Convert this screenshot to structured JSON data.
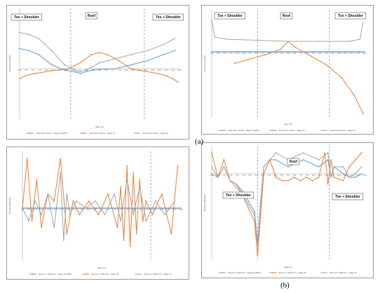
{
  "captions": {
    "a": "(a)",
    "b": "(b)"
  },
  "colors": {
    "blue": "#5b9bd5",
    "orange": "#ed7d31",
    "gray": "#a5a5a5",
    "divider": "#5b9bd5"
  },
  "chart_data": [
    {
      "id": "tl",
      "type": "line",
      "region_labels": [
        "Toe + Shoulder",
        "Roof",
        "Toe + Shoulder"
      ],
      "xlabel": "Span (m)",
      "ylabel": "Axial Force (kN/m)",
      "legend": [
        "Axial Force (kN/m) - Stage 25 (EPS)",
        "Axial Force (kN/m) - Stage 36",
        "Axial Force (kN/m) - Stage 37"
      ],
      "ylim": [
        -300,
        60
      ],
      "series": [
        {
          "name": "Axial Force (kN/m) - Stage 25 (EPS)",
          "color": "blue",
          "x": [
            0,
            0.06,
            0.12,
            0.2,
            0.28,
            0.35,
            0.38,
            0.42,
            0.46,
            0.5,
            0.55,
            0.6,
            0.7,
            0.8,
            0.9,
            0.97
          ],
          "values": [
            20,
            18,
            14,
            4,
            -8,
            -20,
            -28,
            -16,
            -8,
            -4,
            -2,
            0,
            4,
            8,
            14,
            18
          ]
        },
        {
          "name": "Axial Force (kN/m) - Stage 36",
          "color": "orange",
          "x": [
            0,
            0.04,
            0.1,
            0.2,
            0.3,
            0.38,
            0.45,
            0.5,
            0.55,
            0.62,
            0.7,
            0.78,
            0.86,
            0.92,
            0.96,
            0.99
          ],
          "values": [
            -60,
            -40,
            -28,
            -12,
            -2,
            6,
            14,
            16,
            14,
            8,
            -2,
            -14,
            -28,
            -42,
            -60,
            -80
          ]
        },
        {
          "name": "Axial Force (kN/m) - Stage 37",
          "color": "gray",
          "x": [
            0,
            0.06,
            0.12,
            0.2,
            0.28,
            0.35,
            0.38,
            0.42,
            0.46,
            0.5,
            0.55,
            0.6,
            0.7,
            0.8,
            0.9,
            0.97
          ],
          "values": [
            36,
            34,
            30,
            18,
            4,
            -10,
            -18,
            -6,
            2,
            6,
            8,
            10,
            14,
            18,
            24,
            30
          ]
        }
      ]
    },
    {
      "id": "tr",
      "type": "line",
      "region_labels": [
        "Toe + Shoulder",
        "Roof",
        "Toe + Shoulder"
      ],
      "xlabel": "Span (m)",
      "ylabel": "Axial Force (kN/m)",
      "legend": [
        "Axial Force (kN/m) - Stage 25 (EPS)",
        "Axial Force (kN/m) - Stage 36",
        "Axial Force (kN/m) - Stage 37"
      ],
      "ylim": [
        -460,
        80
      ],
      "series": [
        {
          "name": "Axial Force (kN/m) - Stage 25 (EPS)",
          "color": "blue",
          "x": [
            0,
            1
          ],
          "values": [
            0,
            0
          ]
        },
        {
          "name": "Axial Force (kN/m) - Stage 36",
          "color": "orange",
          "x": [
            0.15,
            0.25,
            0.35,
            0.45,
            0.5,
            0.55,
            0.65,
            0.75,
            0.85,
            0.93,
            0.99
          ],
          "values": [
            -80,
            -50,
            -20,
            5,
            20,
            8,
            -30,
            -90,
            -180,
            -300,
            -430
          ]
        },
        {
          "name": "Axial Force (kN/m) - Stage 37",
          "color": "gray",
          "x": [
            0,
            0.02,
            0.1,
            0.3,
            0.5,
            0.7,
            0.9,
            0.97,
            0.99
          ],
          "values": [
            60,
            28,
            24,
            22,
            20,
            20,
            20,
            24,
            56
          ]
        }
      ]
    },
    {
      "id": "bl",
      "type": "line",
      "region_labels": [],
      "xlabel": "Span (m)",
      "ylabel": "Moment (MNm/m)",
      "legend": [
        "Moment Y (MNm/m) - Stage 25 (EPS)",
        "Moment Y (MNm/m) - Stage 36",
        "Moment Y (MNm/m) - Stage 37"
      ],
      "ylim": [
        -8e-05,
        8e-05
      ],
      "series": [
        {
          "name": "Moment Y (MNm/m) - Stage 25 (EPS)",
          "color": "blue",
          "x": [
            0,
            1
          ],
          "values": [
            0,
            0
          ]
        },
        {
          "name": "Moment Y (MNm/m) - Stage 36",
          "color": "orange",
          "x": [
            0,
            0.03,
            0.06,
            0.09,
            0.12,
            0.16,
            0.2,
            0.24,
            0.28,
            0.32,
            0.36,
            0.42,
            0.48,
            0.54,
            0.6,
            0.62,
            0.64,
            0.66,
            0.68,
            0.7,
            0.72,
            0.74,
            0.76,
            0.78,
            0.82,
            0.88,
            0.94,
            0.98
          ],
          "values": [
            0,
            7e-05,
            -2e-05,
            4e-05,
            -3e-05,
            2e-05,
            1e-05,
            7e-05,
            -4e-05,
            1e-05,
            -1e-05,
            1e-05,
            -1e-05,
            2e-05,
            -3e-05,
            3e-05,
            -5e-05,
            6e-05,
            -6e-05,
            5e-05,
            -4e-05,
            4e-05,
            -2e-05,
            1e-05,
            -1e-05,
            2e-05,
            -4e-05,
            6e-05
          ]
        },
        {
          "name": "Moment Y (MNm/m) - Stage 37",
          "color": "gray",
          "x": [
            0,
            0.04,
            0.08,
            0.12,
            0.16,
            0.2,
            0.24,
            0.26,
            0.28,
            0.3,
            0.34,
            0.4,
            0.46,
            0.52,
            0.58,
            0.62,
            0.66,
            0.7,
            0.74,
            0.78,
            0.84,
            0.9,
            0.96
          ],
          "values": [
            0,
            -2e-05,
            1e-05,
            -1e-05,
            2e-05,
            -3e-05,
            5e-05,
            -5e-05,
            2e-05,
            -1e-05,
            1e-05,
            0,
            1e-05,
            -1e-05,
            2e-05,
            -2e-05,
            4e-05,
            -1e-05,
            3e-05,
            -2e-05,
            1e-05,
            -1e-05,
            1e-05
          ]
        }
      ]
    },
    {
      "id": "br",
      "type": "line",
      "region_labels": [
        "Toe + Shoulder",
        "Roof",
        "Toe + Shoulder"
      ],
      "xlabel": "Span (m)",
      "ylabel": "Moment (MNm/m)",
      "legend": [
        "Moment Y (MNm/m) - Stage 25 (EPS)",
        "Moment Y (MNm/m) - Stage 36",
        "Moment Y (MNm/m) - Stage 37"
      ],
      "ylim": [
        -0.00025,
        4e-05
      ],
      "series": [
        {
          "name": "Moment Y (MNm/m) - Stage 25 (EPS)",
          "color": "blue",
          "x": [
            0,
            0.04,
            0.08,
            0.12,
            0.16,
            0.2,
            0.24,
            0.28,
            0.3,
            0.32,
            0.34,
            0.38,
            0.42,
            0.5,
            0.6,
            0.7,
            0.76,
            0.78,
            0.8,
            0.86,
            0.9,
            0.94,
            0.98
          ],
          "values": [
            0,
            -1e-05,
            1e-05,
            -2e-05,
            -3e-05,
            -5e-05,
            -8e-05,
            -0.00011,
            -0.0002,
            -8e-05,
            1e-05,
            2e-05,
            2e-05,
            1e-05,
            2e-05,
            1e-05,
            2e-05,
            -1e-05,
            1e-05,
            0,
            -1e-05,
            -1e-05,
            0
          ]
        },
        {
          "name": "Moment Y (MNm/m) - Stage 36",
          "color": "orange",
          "x": [
            0,
            0.04,
            0.08,
            0.12,
            0.16,
            0.2,
            0.24,
            0.28,
            0.3,
            0.32,
            0.34,
            0.38,
            0.42,
            0.46,
            0.5,
            0.54,
            0.58,
            0.62,
            0.66,
            0.7,
            0.74,
            0.76,
            0.78,
            0.8,
            0.86,
            0.9,
            0.94,
            0.98
          ],
          "values": [
            3e-05,
            -1e-05,
            2e-05,
            -2e-05,
            -3e-05,
            -6e-05,
            -0.0001,
            -0.00014,
            -0.00024,
            -0.00012,
            0,
            2e-05,
            -1e-05,
            -2e-05,
            -2e-05,
            -1e-05,
            -2e-05,
            -1e-05,
            -2e-05,
            -1e-05,
            3e-05,
            -3e-05,
            2e-05,
            -1e-05,
            -2e-05,
            1e-05,
            2e-05,
            3e-05
          ]
        },
        {
          "name": "Moment Y (MNm/m) - Stage 37",
          "color": "gray",
          "x": [
            0,
            0.04,
            0.08,
            0.12,
            0.16,
            0.2,
            0.24,
            0.28,
            0.3,
            0.32,
            0.34,
            0.38,
            0.42,
            0.5,
            0.6,
            0.7,
            0.76,
            0.78,
            0.8,
            0.86,
            0.9,
            0.94,
            0.98
          ],
          "values": [
            1e-05,
            -1e-05,
            1e-05,
            -2e-05,
            -4e-05,
            -6e-05,
            -9e-05,
            -0.00012,
            -0.00021,
            -9e-05,
            1e-05,
            2e-05,
            3e-05,
            2e-05,
            3e-05,
            2e-05,
            3e-05,
            -1e-05,
            1e-05,
            1e-05,
            -1e-05,
            0,
            1e-05
          ]
        }
      ]
    }
  ]
}
